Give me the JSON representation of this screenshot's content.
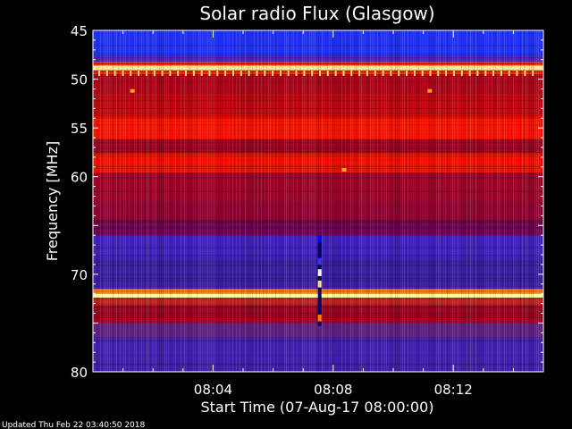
{
  "chart_data": {
    "type": "heatmap",
    "title": "Solar radio Flux (Glasgow)",
    "ylabel": "Frequency [MHz]",
    "xlabel": "Start Time (07-Aug-17 08:00:00)",
    "footer": "Updated Thu Feb 22 03:40:50 2018",
    "x_unit": "minutes after 08:00 UT",
    "xlim": [
      0,
      15
    ],
    "ylim": [
      45,
      80
    ],
    "y_inverted": true,
    "x_ticks": [
      {
        "value": 4,
        "label": "08:04"
      },
      {
        "value": 8,
        "label": "08:08"
      },
      {
        "value": 12,
        "label": "08:12"
      }
    ],
    "y_ticks": [
      {
        "value": 45,
        "label": "45"
      },
      {
        "value": 50,
        "label": "50"
      },
      {
        "value": 55,
        "label": "55"
      },
      {
        "value": 60,
        "label": "60"
      },
      {
        "value": 65,
        "label": ""
      },
      {
        "value": 70,
        "label": "70"
      },
      {
        "value": 75,
        "label": ""
      },
      {
        "value": 80,
        "label": "80"
      }
    ],
    "frequency_bands": [
      {
        "from": 45.0,
        "to": 47.6,
        "color": "#2030ff"
      },
      {
        "from": 47.6,
        "to": 48.2,
        "color": "#5020c0"
      },
      {
        "from": 48.2,
        "to": 48.6,
        "color": "#ff3000"
      },
      {
        "from": 48.6,
        "to": 49.1,
        "color": "#ffe890"
      },
      {
        "from": 49.1,
        "to": 49.5,
        "color": "#ff2200"
      },
      {
        "from": 49.5,
        "to": 51.5,
        "color": "#b00018"
      },
      {
        "from": 51.5,
        "to": 53.5,
        "color": "#c80010"
      },
      {
        "from": 53.5,
        "to": 54.0,
        "color": "#e00000"
      },
      {
        "from": 54.0,
        "to": 56.2,
        "color": "#ff1000"
      },
      {
        "from": 56.2,
        "to": 57.5,
        "color": "#a00020"
      },
      {
        "from": 57.5,
        "to": 58.0,
        "color": "#e01000"
      },
      {
        "from": 58.0,
        "to": 59.6,
        "color": "#ff0a00"
      },
      {
        "from": 59.6,
        "to": 62.5,
        "color": "#a00028"
      },
      {
        "from": 62.5,
        "to": 64.5,
        "color": "#900030"
      },
      {
        "from": 64.5,
        "to": 66.0,
        "color": "#700050"
      },
      {
        "from": 66.0,
        "to": 68.5,
        "color": "#4020c0"
      },
      {
        "from": 68.5,
        "to": 71.5,
        "color": "#3a1ea0"
      },
      {
        "from": 71.5,
        "to": 72.0,
        "color": "#ff8000"
      },
      {
        "from": 72.0,
        "to": 72.4,
        "color": "#ffffa0"
      },
      {
        "from": 72.4,
        "to": 73.2,
        "color": "#c02020"
      },
      {
        "from": 73.2,
        "to": 75.0,
        "color": "#a00020"
      },
      {
        "from": 75.0,
        "to": 76.5,
        "color": "#602080"
      },
      {
        "from": 76.5,
        "to": 80.0,
        "color": "#4020b0"
      }
    ],
    "vertical_streak": {
      "x": 7.55,
      "from": 66.0,
      "to": 75.3
    },
    "tick_marks_band": {
      "freq": 49.4,
      "count": 56
    },
    "hot_spots": [
      {
        "x": 1.3,
        "y": 51.2
      },
      {
        "x": 8.35,
        "y": 59.3
      },
      {
        "x": 11.2,
        "y": 51.2
      }
    ]
  }
}
